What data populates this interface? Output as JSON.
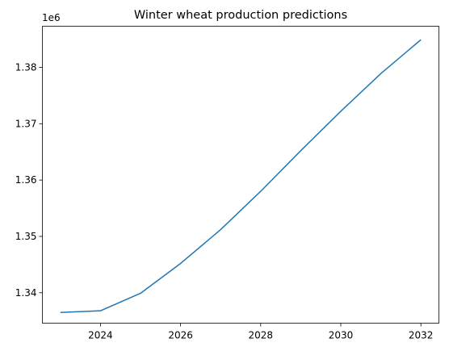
{
  "chart_data": {
    "type": "line",
    "title": "Winter wheat production predictions",
    "xlabel": "",
    "ylabel": "",
    "y_offset_label": "1e6",
    "x_ticks": [
      2024,
      2026,
      2028,
      2030,
      2032
    ],
    "y_ticks": [
      1.34,
      1.35,
      1.36,
      1.37,
      1.38
    ],
    "x_tick_labels": [
      "2024",
      "2026",
      "2028",
      "2030",
      "2032"
    ],
    "y_tick_labels": [
      "1.34",
      "1.35",
      "1.36",
      "1.37",
      "1.38"
    ],
    "xlim": [
      2022.55,
      2032.45
    ],
    "ylim": [
      1.3346,
      1.3873
    ],
    "grid": false,
    "series": [
      {
        "color": "#1f77b4",
        "x": [
          2023,
          2024,
          2025,
          2026,
          2027,
          2028,
          2029,
          2030,
          2031,
          2032
        ],
        "y": [
          1.3365,
          1.3368,
          1.3399,
          1.3452,
          1.3512,
          1.358,
          1.3652,
          1.3722,
          1.3789,
          1.3849
        ]
      }
    ]
  }
}
